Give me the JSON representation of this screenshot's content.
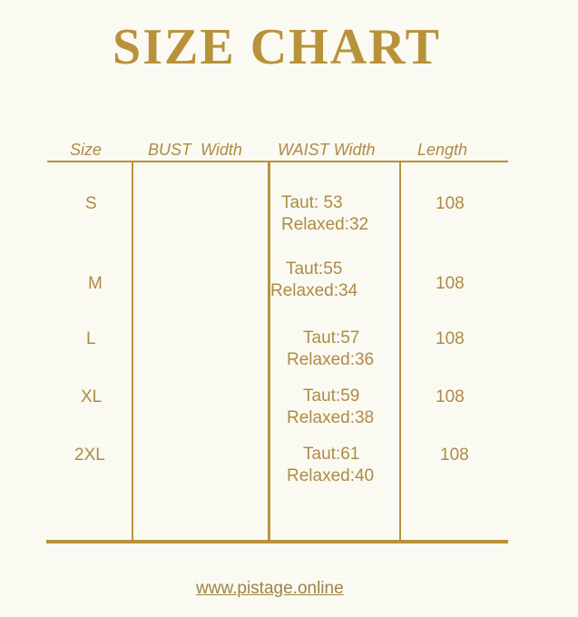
{
  "title": "SIZE CHART",
  "colors": {
    "accent": "#b8923a",
    "background": "#fafaf3"
  },
  "table": {
    "headers": [
      "Size",
      "BUST  Width",
      "WAIST Width",
      "Length"
    ],
    "rows": [
      {
        "size": "S",
        "bust": "",
        "waist_taut": "Taut: 53",
        "waist_relaxed": "Relaxed:32",
        "length": "108"
      },
      {
        "size": "M",
        "bust": "",
        "waist_taut": "Taut:55",
        "waist_relaxed": "Relaxed:34",
        "length": "108"
      },
      {
        "size": "L",
        "bust": "",
        "waist_taut": "Taut:57",
        "waist_relaxed": "Relaxed:36",
        "length": "108"
      },
      {
        "size": "XL",
        "bust": "",
        "waist_taut": "Taut:59",
        "waist_relaxed": "Relaxed:38",
        "length": "108"
      },
      {
        "size": "2XL",
        "bust": "",
        "waist_taut": "Taut:61",
        "waist_relaxed": "Relaxed:40",
        "length": "108"
      }
    ]
  },
  "footer": {
    "url": "www.pistage.online"
  }
}
